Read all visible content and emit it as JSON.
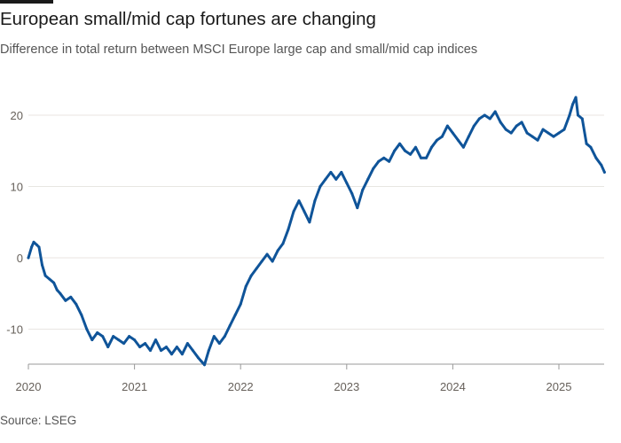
{
  "header": {
    "title": "European small/mid cap fortunes are changing",
    "subtitle": "Difference in total return between MSCI Europe large cap and small/mid cap indices"
  },
  "footer": {
    "source": "Source: LSEG"
  },
  "chart_data": {
    "type": "line",
    "title": "European small/mid cap fortunes are changing",
    "subtitle": "Difference in total return between MSCI Europe large cap and small/mid cap indices",
    "xlabel": "",
    "ylabel": "",
    "xlim": [
      2020.0,
      2025.45
    ],
    "ylim": [
      -15,
      23
    ],
    "y_ticks": [
      20,
      10,
      0,
      -10
    ],
    "x_ticks": [
      2020,
      2021,
      2022,
      2023,
      2024,
      2025
    ],
    "grid": true,
    "legend": "none",
    "colors": {
      "line": "#0f5499",
      "grid": "#e8e6e2",
      "axis": "#999999",
      "text": "#66605a"
    },
    "series": [
      {
        "x": [
          2020.0,
          2020.03,
          2020.05,
          2020.08,
          2020.1,
          2020.13,
          2020.16,
          2020.2,
          2020.24,
          2020.27,
          2020.3,
          2020.35,
          2020.4,
          2020.45,
          2020.5,
          2020.55,
          2020.6,
          2020.65,
          2020.7,
          2020.75,
          2020.8,
          2020.85,
          2020.9,
          2020.95,
          2021.0,
          2021.05,
          2021.1,
          2021.15,
          2021.2,
          2021.25,
          2021.3,
          2021.35,
          2021.4,
          2021.45,
          2021.5,
          2021.55,
          2021.6,
          2021.63,
          2021.66,
          2021.7,
          2021.75,
          2021.8,
          2021.85,
          2021.9,
          2021.95,
          2022.0,
          2022.05,
          2022.1,
          2022.15,
          2022.2,
          2022.25,
          2022.3,
          2022.35,
          2022.4,
          2022.45,
          2022.5,
          2022.55,
          2022.6,
          2022.65,
          2022.7,
          2022.75,
          2022.8,
          2022.85,
          2022.9,
          2022.95,
          2023.0,
          2023.05,
          2023.1,
          2023.15,
          2023.2,
          2023.25,
          2023.3,
          2023.35,
          2023.4,
          2023.45,
          2023.5,
          2023.55,
          2023.6,
          2023.65,
          2023.7,
          2023.75,
          2023.8,
          2023.85,
          2023.9,
          2023.95,
          2024.0,
          2024.05,
          2024.1,
          2024.15,
          2024.2,
          2024.25,
          2024.3,
          2024.35,
          2024.4,
          2024.45,
          2024.5,
          2024.55,
          2024.6,
          2024.65,
          2024.7,
          2024.75,
          2024.8,
          2024.85,
          2024.9,
          2024.95,
          2025.0,
          2025.05,
          2025.1,
          2025.13,
          2025.16,
          2025.18,
          2025.22,
          2025.26,
          2025.3,
          2025.35,
          2025.4,
          2025.43
        ],
        "values": [
          0.0,
          1.5,
          2.2,
          1.8,
          1.5,
          -1.0,
          -2.5,
          -3.0,
          -3.5,
          -4.5,
          -5.0,
          -6.0,
          -5.5,
          -6.5,
          -8.0,
          -10.0,
          -11.5,
          -10.5,
          -11.0,
          -12.5,
          -11.0,
          -11.5,
          -12.0,
          -11.0,
          -11.5,
          -12.5,
          -12.0,
          -13.0,
          -11.5,
          -13.0,
          -12.5,
          -13.5,
          -12.5,
          -13.5,
          -12.0,
          -13.0,
          -14.0,
          -14.5,
          -15.0,
          -13.0,
          -11.0,
          -12.0,
          -11.0,
          -9.5,
          -8.0,
          -6.5,
          -4.0,
          -2.5,
          -1.5,
          -0.5,
          0.5,
          -0.5,
          1.0,
          2.0,
          4.0,
          6.5,
          8.0,
          6.5,
          5.0,
          8.0,
          10.0,
          11.0,
          12.0,
          11.0,
          12.0,
          10.5,
          9.0,
          7.0,
          9.5,
          11.0,
          12.5,
          13.5,
          14.0,
          13.5,
          15.0,
          16.0,
          15.0,
          14.5,
          15.5,
          14.0,
          14.0,
          15.5,
          16.5,
          17.0,
          18.5,
          17.5,
          16.5,
          15.5,
          17.0,
          18.5,
          19.5,
          20.0,
          19.5,
          20.5,
          19.0,
          18.0,
          17.5,
          18.5,
          19.0,
          17.5,
          17.0,
          16.5,
          18.0,
          17.5,
          17.0,
          17.5,
          18.0,
          20.0,
          21.5,
          22.5,
          20.0,
          19.5,
          16.0,
          15.5,
          14.0,
          13.0,
          12.0
        ]
      }
    ]
  }
}
